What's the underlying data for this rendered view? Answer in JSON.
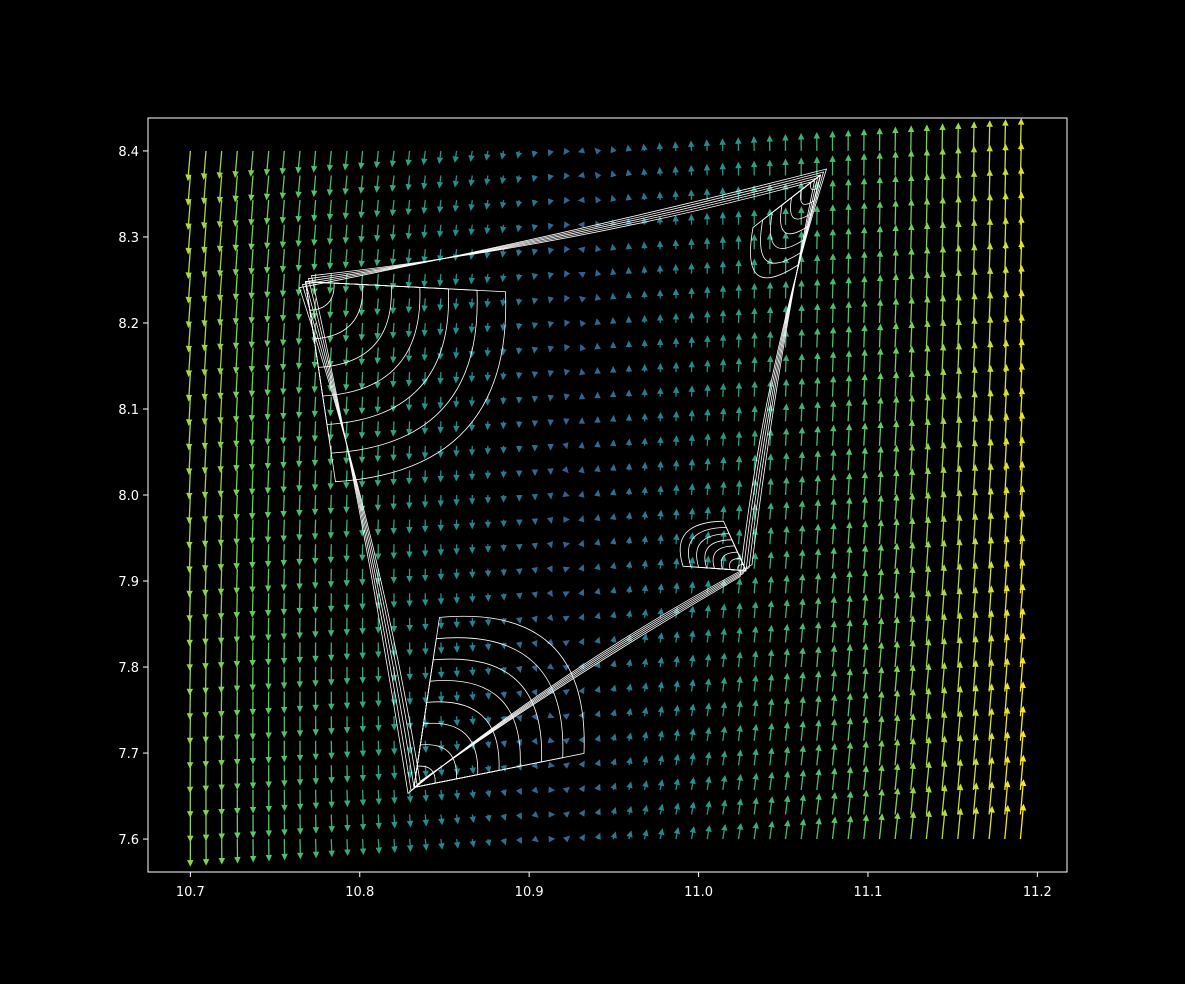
{
  "chart_data": {
    "type": "quiver",
    "title": "",
    "xlabel": "",
    "ylabel": "",
    "background": "#000000",
    "frame_color": "#ffffff",
    "trajectory_color": "#ffffff",
    "colormap": "viridis",
    "grid": false,
    "legend": "none",
    "xlim": [
      10.675,
      11.2175
    ],
    "ylim": [
      7.5617,
      8.4383
    ],
    "xticks": [
      10.7,
      10.8,
      10.9,
      11.0,
      11.1,
      11.2
    ],
    "xtick_labels": [
      "10.7",
      "10.8",
      "10.9",
      "11.0",
      "11.1",
      "11.2"
    ],
    "yticks": [
      7.6,
      7.7,
      7.8,
      7.9,
      8.0,
      8.1,
      8.2,
      8.3,
      8.4
    ],
    "ytick_labels": [
      "7.6",
      "7.7",
      "7.8",
      "7.9",
      "8.0",
      "8.1",
      "8.2",
      "8.3",
      "8.4"
    ],
    "vector_field": {
      "x_range": [
        10.7,
        11.19
      ],
      "y_range": [
        7.6,
        8.4
      ],
      "nx": 54,
      "ny": 29,
      "center": [
        10.925,
        8.09
      ],
      "color_by": "magnitude"
    },
    "attractor_vertices": [
      [
        10.768,
        8.248
      ],
      [
        11.072,
        8.372
      ],
      [
        11.028,
        7.912
      ],
      [
        10.832,
        7.66
      ]
    ]
  }
}
